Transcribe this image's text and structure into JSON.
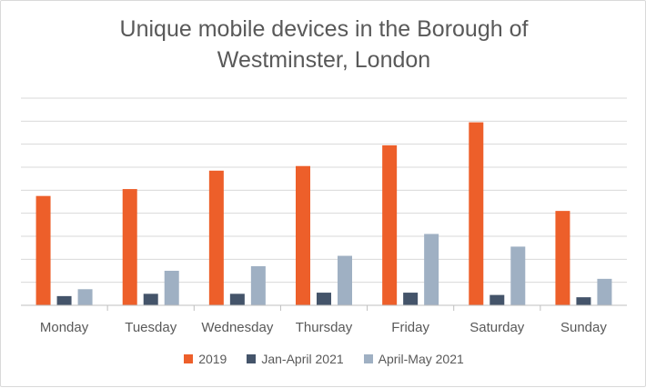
{
  "chart_data": {
    "type": "bar",
    "title": "Unique mobile devices in the Borough of\nWestminster, London",
    "xlabel": "",
    "ylabel": "",
    "categories": [
      "Monday",
      "Tuesday",
      "Wednesday",
      "Thursday",
      "Friday",
      "Saturday",
      "Sunday"
    ],
    "series": [
      {
        "name": "2019",
        "color": "#ED5F2A",
        "values": [
          4.75,
          5.05,
          5.85,
          6.05,
          6.95,
          7.95,
          4.1
        ]
      },
      {
        "name": "Jan-April 2021",
        "color": "#44546A",
        "values": [
          0.4,
          0.5,
          0.5,
          0.55,
          0.55,
          0.45,
          0.35
        ]
      },
      {
        "name": "April-May 2021",
        "color": "#9FB0C3",
        "values": [
          0.7,
          1.5,
          1.7,
          2.15,
          3.1,
          2.55,
          1.15
        ]
      }
    ],
    "ylim": [
      0,
      9
    ],
    "grid": true,
    "y_tick_labels_shown": false,
    "legend_position": "bottom"
  }
}
